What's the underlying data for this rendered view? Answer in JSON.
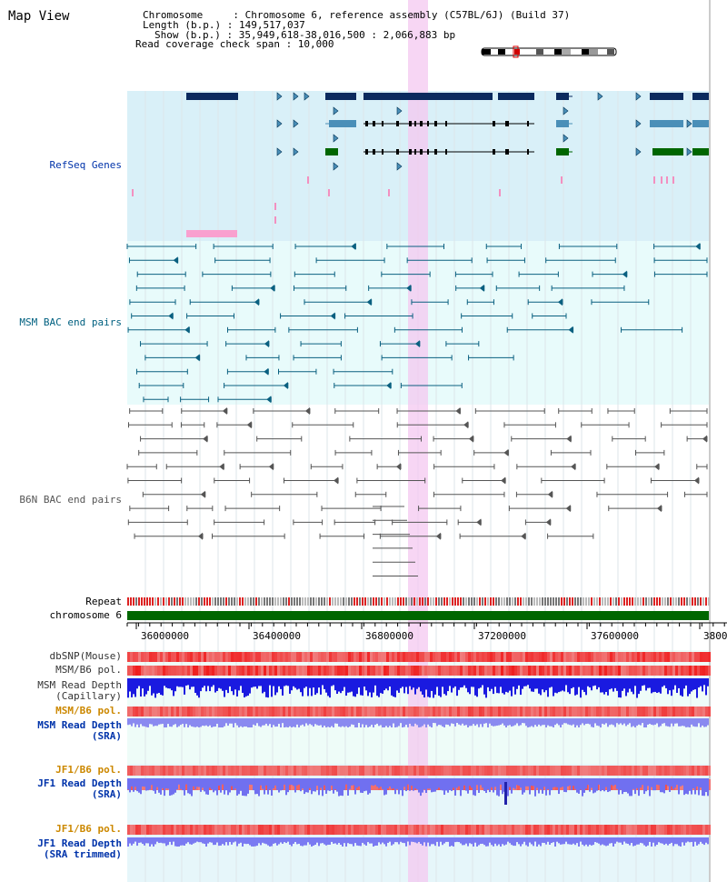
{
  "title": "Map View",
  "header": {
    "chromosome_line": "Chromosome     : Chromosome 6, reference assembly (C57BL/6J) (Build 37)",
    "length_line": "Length (b.p.) : 149,517,037",
    "show_line": "Show (b.p.) : 35,949,618-38,016,500 : 2,066,883 bp",
    "coverage_line": "Read coverage check span : 10,000"
  },
  "tracks": {
    "refseq": "RefSeq Genes",
    "msm_bac": "MSM BAC end pairs",
    "b6n_bac": "B6N BAC end pairs",
    "repeat": "Repeat",
    "chromosome": "chromosome 6",
    "dbsnp": "dbSNP(Mouse)",
    "msm_b6_pol_1": "MSM/B6 pol.",
    "msm_depth_cap_1": "MSM Read Depth",
    "msm_depth_cap_2": "(Capillary)",
    "msm_b6_pol_2": "MSM/B6 pol.",
    "msm_depth_sra_1": "MSM Read Depth",
    "msm_depth_sra_2": "(SRA)",
    "jf1_b6_pol_1": "JF1/B6 pol.",
    "jf1_depth_sra_1": "JF1 Read Depth",
    "jf1_depth_sra_2": "(SRA)",
    "jf1_b6_pol_2": "JF1/B6 pol.",
    "jf1_depth_trim_1": "JF1 Read Depth",
    "jf1_depth_trim_2": "(SRA trimmed)"
  },
  "axis": {
    "ticks": [
      "36000000",
      "36400000",
      "36800000",
      "37200000",
      "37600000",
      "3800"
    ]
  },
  "colors": {
    "refseq_bg": "#d9f0f8",
    "bac_bg": "#e8fbfb",
    "gene_dark": "#0b2a5e",
    "gene_mid": "#4a8fb8",
    "gene_green": "#006600",
    "msm_label": "#006080",
    "highlight": "#f4c8f0",
    "pol_red": "#ee3333",
    "depth_blue": "#2222dd"
  }
}
